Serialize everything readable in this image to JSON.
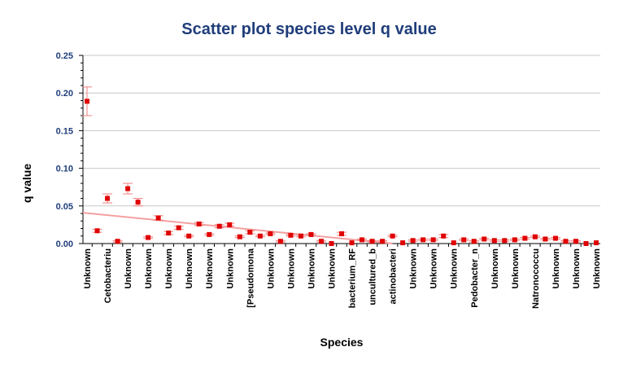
{
  "chart_data": {
    "type": "scatter",
    "title": "Scatter plot species level q value",
    "xlabel": "Species",
    "ylabel": "q value",
    "ylim": [
      0,
      0.25
    ],
    "yticks": [
      "0.00",
      "0.05",
      "0.10",
      "0.15",
      "0.20",
      "0.25"
    ],
    "grid": true,
    "legend": "none",
    "colors": {
      "point": "#e00000",
      "error_bar": "#f08080",
      "trend": "#f4a0a0",
      "grid": "#c8c8c8",
      "title": "#1f3d7a"
    },
    "xtick_labels": [
      "Unknown",
      "Cetobacteriu",
      "Unknown",
      "Unknown",
      "Unknown",
      "Unknown",
      "Unknown",
      "Unknown",
      "[Pseudomona",
      "Unknown",
      "Unknown",
      "Unknown",
      "Unknown",
      "bacterium_RF",
      "uncultured_b",
      "actinobacteri",
      "Unknown",
      "Unknown",
      "Unknown",
      "Pedobacter_n",
      "Unknown",
      "Unknown",
      "Natronococcu",
      "Unknown",
      "Unknown",
      "Unknown"
    ],
    "values": [
      0.189,
      0.017,
      0.06,
      0.003,
      0.073,
      0.055,
      0.008,
      0.034,
      0.014,
      0.021,
      0.01,
      0.026,
      0.012,
      0.023,
      0.025,
      0.009,
      0.015,
      0.01,
      0.013,
      0.003,
      0.011,
      0.01,
      0.012,
      0.003,
      0.0,
      0.013,
      0.001,
      0.005,
      0.003,
      0.003,
      0.01,
      0.001,
      0.004,
      0.005,
      0.005,
      0.01,
      0.001,
      0.005,
      0.003,
      0.006,
      0.004,
      0.004,
      0.005,
      0.007,
      0.009,
      0.006,
      0.007,
      0.003,
      0.003,
      0.0,
      0.001
    ],
    "errors": [
      0.019,
      0.002,
      0.006,
      0.001,
      0.007,
      0.005,
      0.001,
      0.003,
      0.002,
      0.002,
      0.001,
      0.002,
      0.001,
      0.002,
      0.002,
      0.001,
      0.002,
      0.001,
      0.001,
      0.001,
      0.001,
      0.001,
      0.001,
      0.001,
      0.0,
      0.002,
      0.0,
      0.001,
      0.001,
      0.001,
      0.001,
      0.0,
      0.001,
      0.001,
      0.001,
      0.002,
      0.0,
      0.001,
      0.001,
      0.001,
      0.001,
      0.001,
      0.001,
      0.001,
      0.001,
      0.001,
      0.001,
      0.001,
      0.001,
      0.0,
      0.0
    ],
    "trendline": {
      "start": 0.041,
      "end": 0.0
    }
  }
}
